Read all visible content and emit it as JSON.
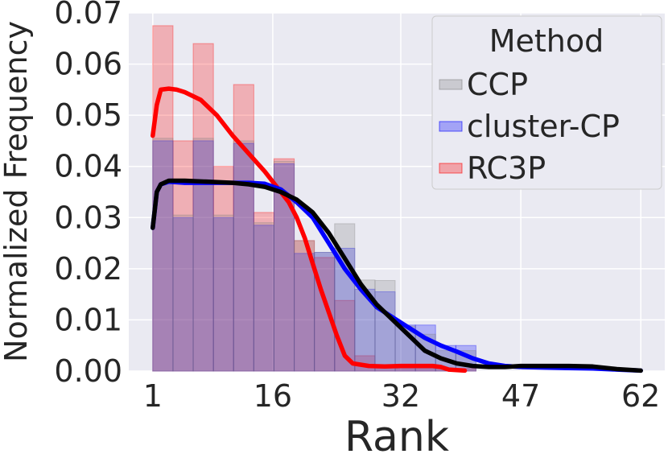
{
  "chart_data": {
    "type": "histogram",
    "xlabel": "Rank",
    "ylabel": "Normalized Frequency",
    "x_ticks": [
      1,
      16,
      32,
      47,
      62
    ],
    "x_range": [
      -2,
      65
    ],
    "y_ticks": [
      "0.00",
      "0.01",
      "0.02",
      "0.03",
      "0.04",
      "0.05",
      "0.06",
      "0.07"
    ],
    "ylim": [
      0,
      0.07
    ],
    "grid": true,
    "legend": {
      "title": "Method",
      "placement": "top-right"
    },
    "bin_edges": [
      1,
      3.53,
      6.05,
      8.58,
      11.1,
      13.63,
      16.15,
      18.68,
      21.2,
      23.73,
      26.25,
      28.78,
      31.3,
      33.83,
      36.35,
      38.88,
      41.4
    ],
    "series": [
      {
        "name": "CCP",
        "color": "#808080",
        "hist": [
          0.0455,
          0.0305,
          0.0455,
          0.0305,
          0.045,
          0.029,
          0.041,
          0.0255,
          0.0232,
          0.0288,
          0.0178,
          0.0177,
          0.0088,
          0.0072,
          0.004,
          0.004
        ],
        "kde_x": [
          1,
          1.5,
          2,
          3,
          5,
          8,
          11,
          13,
          15,
          17,
          19,
          21,
          23,
          25,
          27,
          29,
          31,
          33,
          35,
          37,
          39,
          41,
          43,
          45,
          47,
          50,
          53,
          56,
          59,
          62
        ],
        "kde_y": [
          0.028,
          0.035,
          0.0365,
          0.0372,
          0.0372,
          0.037,
          0.0368,
          0.0365,
          0.036,
          0.035,
          0.0335,
          0.031,
          0.027,
          0.022,
          0.017,
          0.013,
          0.01,
          0.007,
          0.004,
          0.0025,
          0.0015,
          0.001,
          0.0008,
          0.0008,
          0.001,
          0.001,
          0.001,
          0.0009,
          0.0004,
          0.0001
        ]
      },
      {
        "name": "cluster-CP",
        "color": "#0000ff",
        "hist": [
          0.045,
          0.03,
          0.045,
          0.03,
          0.0445,
          0.0285,
          0.0405,
          0.023,
          0.0232,
          0.024,
          0.016,
          0.0155,
          0.009,
          0.009,
          0.005,
          0.005
        ],
        "kde_x": [
          1,
          1.5,
          2,
          3,
          5,
          8,
          11,
          13,
          15,
          17,
          19,
          21,
          23,
          25,
          27,
          29,
          31,
          33,
          35,
          37,
          39,
          41,
          43,
          45,
          47,
          50,
          53,
          56,
          59,
          62
        ],
        "kde_y": [
          0.028,
          0.035,
          0.0365,
          0.037,
          0.0368,
          0.0368,
          0.0368,
          0.0368,
          0.0366,
          0.0355,
          0.033,
          0.03,
          0.025,
          0.02,
          0.016,
          0.0125,
          0.0105,
          0.0085,
          0.0065,
          0.005,
          0.0038,
          0.0025,
          0.0015,
          0.001,
          0.0008,
          0.0007,
          0.0006,
          0.0005,
          0.0003,
          0.0001
        ]
      },
      {
        "name": "RC3P",
        "color": "#ff0000",
        "hist": [
          0.0675,
          0.045,
          0.064,
          0.04,
          0.056,
          0.031,
          0.0415,
          0.0255,
          0.0222,
          0.0138,
          0.003,
          0.0012,
          0.0005,
          0.0005,
          0.0005,
          0.0005
        ],
        "kde_x": [
          1,
          1.5,
          2,
          3,
          4,
          5,
          7,
          9,
          11,
          13,
          15,
          17,
          18,
          19,
          20,
          21,
          22,
          23,
          24,
          25,
          26,
          28,
          30,
          32,
          34,
          36,
          37,
          38,
          40
        ],
        "kde_y": [
          0.046,
          0.052,
          0.055,
          0.0552,
          0.055,
          0.0545,
          0.053,
          0.05,
          0.046,
          0.0425,
          0.039,
          0.035,
          0.033,
          0.03,
          0.026,
          0.021,
          0.016,
          0.0115,
          0.007,
          0.003,
          0.0015,
          0.001,
          0.0009,
          0.001,
          0.001,
          0.001,
          0.0008,
          0.0003,
          0.0001
        ]
      }
    ]
  }
}
